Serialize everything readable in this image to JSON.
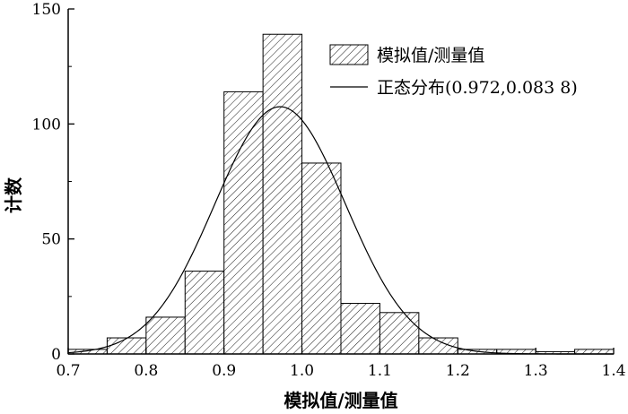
{
  "chart_data": {
    "type": "bar",
    "subtype": "histogram",
    "title": "",
    "xlabel": "模拟值/测量值",
    "ylabel": "计数",
    "xlim": [
      0.7,
      1.4
    ],
    "ylim": [
      0,
      150
    ],
    "xticks": [
      0.7,
      0.8,
      0.9,
      1.0,
      1.1,
      1.2,
      1.3,
      1.4
    ],
    "xtick_labels": [
      "0.7",
      "0.8",
      "0.9",
      "1.0",
      "1.1",
      "1.2",
      "1.3",
      "1.4"
    ],
    "yticks": [
      0,
      50,
      100,
      150
    ],
    "ytick_labels": [
      "0",
      "50",
      "100",
      "150"
    ],
    "bin_width": 0.05,
    "bins": [
      {
        "start": 0.7,
        "end": 0.75,
        "count": 2
      },
      {
        "start": 0.75,
        "end": 0.8,
        "count": 7
      },
      {
        "start": 0.8,
        "end": 0.85,
        "count": 16
      },
      {
        "start": 0.85,
        "end": 0.9,
        "count": 36
      },
      {
        "start": 0.9,
        "end": 0.95,
        "count": 114
      },
      {
        "start": 0.95,
        "end": 1.0,
        "count": 139
      },
      {
        "start": 1.0,
        "end": 1.05,
        "count": 83
      },
      {
        "start": 1.05,
        "end": 1.1,
        "count": 22
      },
      {
        "start": 1.1,
        "end": 1.15,
        "count": 18
      },
      {
        "start": 1.15,
        "end": 1.2,
        "count": 7
      },
      {
        "start": 1.2,
        "end": 1.25,
        "count": 2
      },
      {
        "start": 1.25,
        "end": 1.3,
        "count": 2
      },
      {
        "start": 1.3,
        "end": 1.35,
        "count": 1
      },
      {
        "start": 1.35,
        "end": 1.4,
        "count": 2
      }
    ],
    "normal_fit": {
      "mean": 0.972,
      "std": 0.0838,
      "peak": 107.5
    },
    "legend": {
      "placement": "top-right",
      "entries": [
        {
          "label": "模拟值/测量值",
          "marker": "hatched-box"
        },
        {
          "label": "正态分布(0.972,0.083 8)",
          "marker": "line"
        }
      ]
    },
    "colors": {
      "bar_fill": "#ffffff",
      "hatch": "#000000",
      "line": "#000000"
    }
  }
}
